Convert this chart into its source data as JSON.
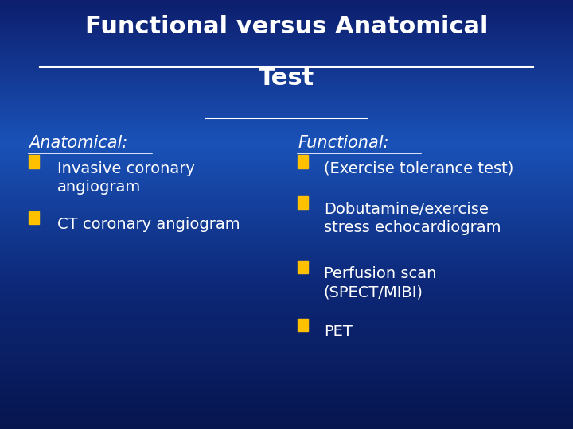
{
  "title_line1": "Functional versus Anatomical",
  "title_line2": "Test",
  "bg_color_top": "#0a1a5c",
  "bg_color_mid": "#1a4aaa",
  "bg_color_bot": "#0d2060",
  "text_color": "#ffffff",
  "underline_color": "#ffffff",
  "bullet_color": "#ffc000",
  "title_fontsize": 22,
  "header_fontsize": 15,
  "body_fontsize": 14,
  "left_header": "Anatomical:",
  "left_bullets": [
    "Invasive coronary\nangiogram",
    "CT coronary angiogram"
  ],
  "right_header": "Functional:",
  "right_bullets": [
    "(Exercise tolerance test)",
    "Dobutamine/exercise\nstress echocardiogram",
    "Perfusion scan\n(SPECT/MIBI)",
    "PET"
  ]
}
